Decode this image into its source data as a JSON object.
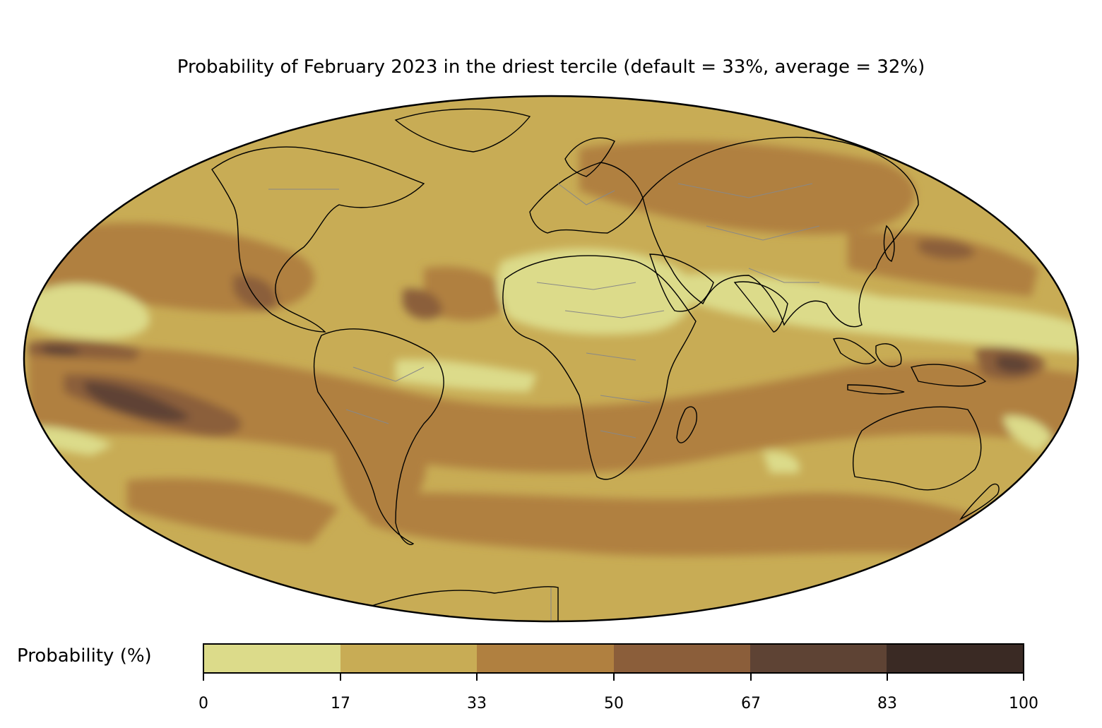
{
  "title": "Probability of February 2023 in the driest tercile (default = 33%, average = 32%)",
  "colorbar": {
    "label": "Probability (%)",
    "ticks": [
      "0",
      "17",
      "33",
      "50",
      "67",
      "83",
      "100"
    ],
    "colors": [
      "#dcdb8a",
      "#c8ac55",
      "#b08040",
      "#8b5e3a",
      "#5e4334",
      "#3a2a24"
    ]
  },
  "map": {
    "projection": "Mollweide",
    "background_color": "#c8ac55",
    "coastline_color": "#000000",
    "border_color": "#888888"
  }
}
